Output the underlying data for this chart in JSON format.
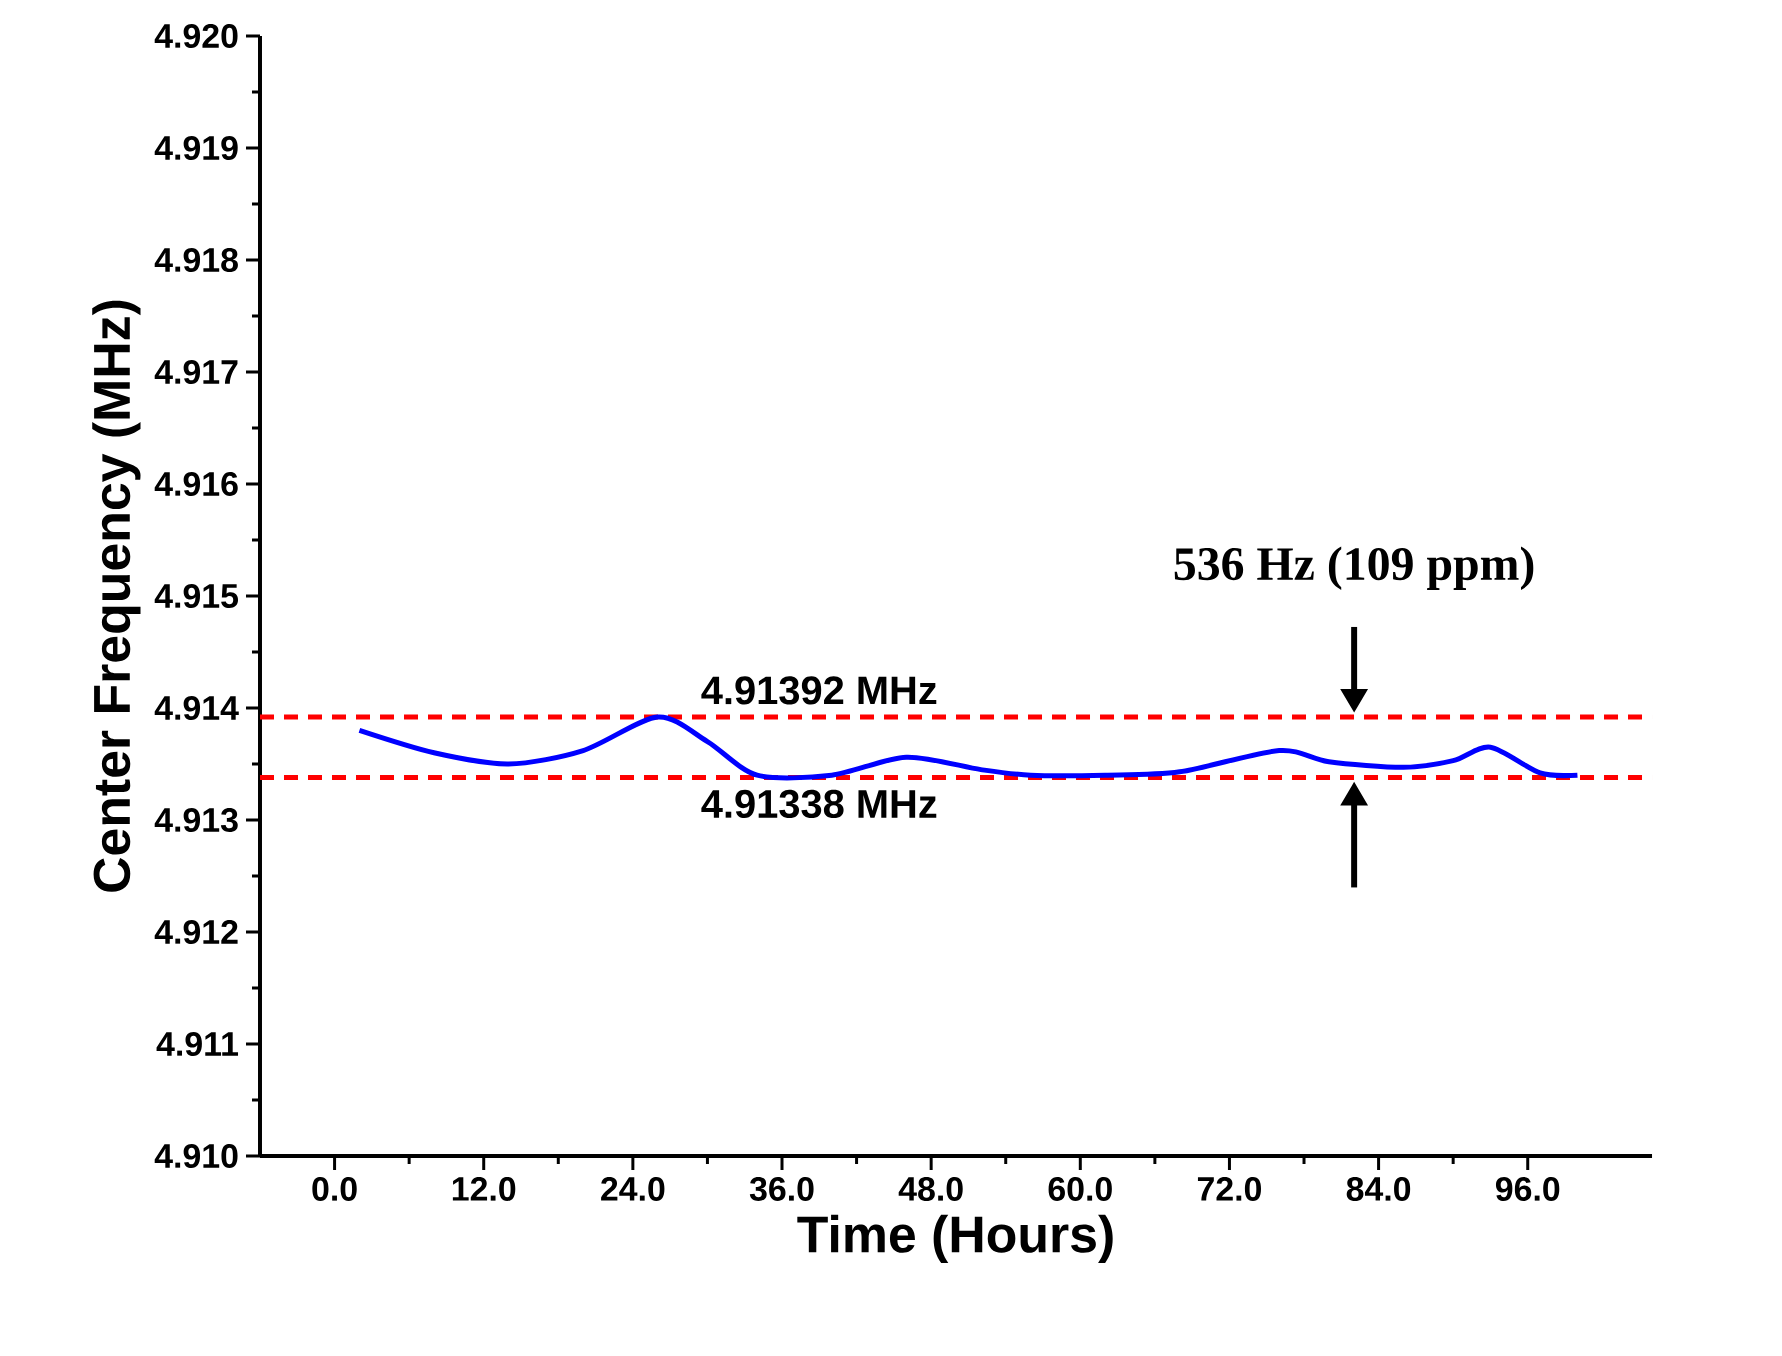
{
  "chart_data": {
    "type": "line",
    "xlabel": "Time (Hours)",
    "ylabel": "Center Frequency (MHz)",
    "x": [
      2,
      8,
      14,
      20,
      26,
      30,
      34,
      40,
      46,
      52,
      56,
      62,
      68,
      76,
      80,
      86,
      90,
      93,
      97,
      100
    ],
    "series": [
      {
        "color": "#0000ff",
        "values": [
          4.9138,
          4.9136,
          4.9135,
          4.91362,
          4.91392,
          4.9137,
          4.9134,
          4.9134,
          4.91356,
          4.91345,
          4.9134,
          4.9134,
          4.91343,
          4.91362,
          4.91352,
          4.91347,
          4.91353,
          4.91365,
          4.91342,
          4.9134
        ]
      }
    ],
    "xlim": [
      -6,
      106
    ],
    "xticks": [
      {
        "value": 0,
        "label": "0.0"
      },
      {
        "value": 12,
        "label": "12.0"
      },
      {
        "value": 24,
        "label": "24.0"
      },
      {
        "value": 36,
        "label": "36.0"
      },
      {
        "value": 48,
        "label": "48.0"
      },
      {
        "value": 60,
        "label": "60.0"
      },
      {
        "value": 72,
        "label": "72.0"
      },
      {
        "value": 84,
        "label": "84.0"
      },
      {
        "value": 96,
        "label": "96.0"
      }
    ],
    "ylim": [
      4.91,
      4.92
    ],
    "yticks": [
      {
        "value": 4.91,
        "label": "4.910"
      },
      {
        "value": 4.911,
        "label": "4.911"
      },
      {
        "value": 4.912,
        "label": "4.912"
      },
      {
        "value": 4.913,
        "label": "4.913"
      },
      {
        "value": 4.914,
        "label": "4.914"
      },
      {
        "value": 4.915,
        "label": "4.915"
      },
      {
        "value": 4.916,
        "label": "4.916"
      },
      {
        "value": 4.917,
        "label": "4.917"
      },
      {
        "value": 4.918,
        "label": "4.918"
      },
      {
        "value": 4.919,
        "label": "4.919"
      },
      {
        "value": 4.92,
        "label": "4.920"
      }
    ],
    "ref_lines": [
      {
        "axis": "y",
        "value": 4.91392,
        "label": "4.91392 MHz",
        "color": "#ff0000",
        "line_style": "dashed"
      },
      {
        "axis": "y",
        "value": 4.91338,
        "label": "4.91338 MHz",
        "color": "#ff0000",
        "line_style": "dashed"
      }
    ],
    "annotations": [
      "536 Hz (109 ppm)"
    ],
    "grid": false,
    "marker": "none",
    "line_style": "solid"
  }
}
